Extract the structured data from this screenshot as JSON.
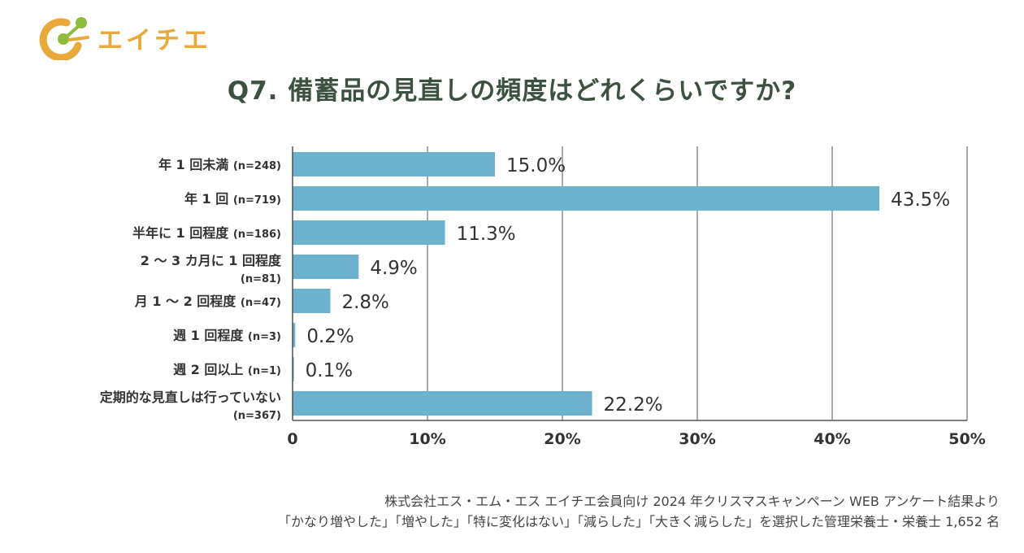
{
  "brand": {
    "name": "エイチエ",
    "color": "#e8a93a"
  },
  "chart_data": {
    "type": "bar",
    "orientation": "horizontal",
    "title": "Q7. 備蓄品の見直しの頻度はどれくらいですか?",
    "categories": [
      {
        "label": "年 1 回未満",
        "n": "(n=248)"
      },
      {
        "label": "年 1 回",
        "n": "(n=719)"
      },
      {
        "label": "半年に 1 回程度",
        "n": "(n=186)"
      },
      {
        "label": "2 〜 3 カ月に 1 回程度",
        "n": "(n=81)"
      },
      {
        "label": "月 1 〜 2 回程度",
        "n": "(n=47)"
      },
      {
        "label": "週 1 回程度",
        "n": "(n=3)"
      },
      {
        "label": "週 2 回以上",
        "n": "(n=1)"
      },
      {
        "label": "定期的な見直しは行っていない",
        "n": "(n=367)"
      }
    ],
    "values": [
      15.0,
      43.5,
      11.3,
      4.9,
      2.8,
      0.2,
      0.1,
      22.2
    ],
    "value_labels": [
      "15.0%",
      "43.5%",
      "11.3%",
      "4.9%",
      "2.8%",
      "0.2%",
      "0.1%",
      "22.2%"
    ],
    "xlim": [
      0,
      50
    ],
    "x_ticks": [
      "0",
      "10%",
      "20%",
      "30%",
      "40%",
      "50%"
    ],
    "grid": true,
    "bar_color": "#6ab2cd"
  },
  "source": {
    "line1": "株式会社エス・エム・エス エイチエ会員向け 2024 年クリスマスキャンペーン WEB アンケート結果より",
    "line2": "「かなり増やした」「増やした」「特に変化はない」「減らした」「大きく減らした」を選択した管理栄養士・栄養士 1,652 名"
  }
}
